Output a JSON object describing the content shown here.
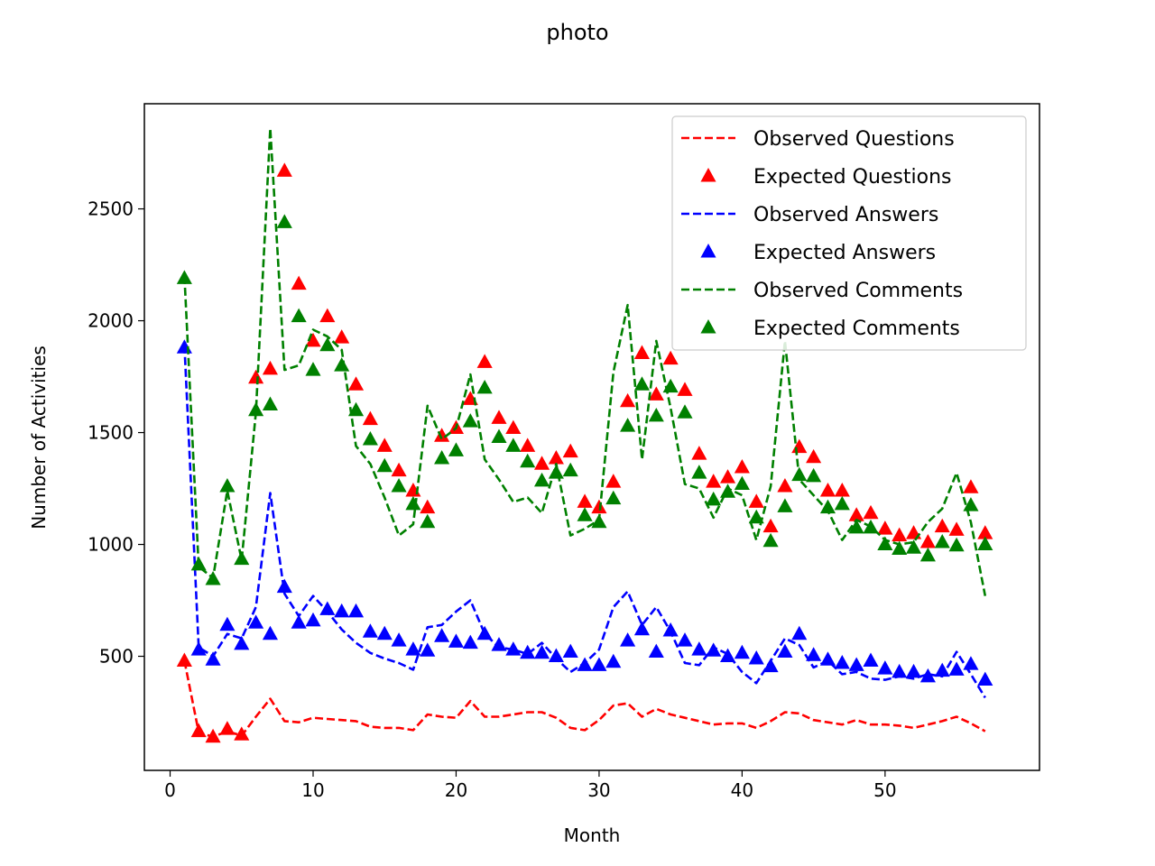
{
  "chart_data": {
    "type": "line",
    "title": "photo",
    "xlabel": "Month",
    "ylabel": "Number of Activities",
    "xlim": [
      -1.8,
      60.8
    ],
    "ylim": [
      -10,
      2970
    ],
    "xticks": [
      0,
      10,
      20,
      30,
      40,
      50
    ],
    "yticks": [
      500,
      1000,
      1500,
      2000,
      2500
    ],
    "grid": false,
    "legend_position": "top-right",
    "x": [
      1,
      2,
      3,
      4,
      5,
      6,
      7,
      8,
      9,
      10,
      11,
      12,
      13,
      14,
      15,
      16,
      17,
      18,
      19,
      20,
      21,
      22,
      23,
      24,
      25,
      26,
      27,
      28,
      29,
      30,
      31,
      32,
      33,
      34,
      35,
      36,
      37,
      38,
      39,
      40,
      41,
      42,
      43,
      44,
      45,
      46,
      47,
      48,
      49,
      50,
      51,
      52,
      53,
      54,
      55,
      56,
      57
    ],
    "series": [
      {
        "name": "Observed Questions",
        "style": "dashed",
        "color": "#ff0000",
        "values": [
          480,
          160,
          140,
          165,
          145,
          230,
          310,
          210,
          205,
          225,
          220,
          215,
          210,
          185,
          180,
          180,
          170,
          240,
          230,
          225,
          300,
          230,
          230,
          240,
          250,
          250,
          225,
          180,
          170,
          215,
          280,
          290,
          230,
          265,
          240,
          225,
          210,
          195,
          200,
          200,
          180,
          210,
          250,
          245,
          215,
          205,
          195,
          215,
          195,
          195,
          190,
          180,
          195,
          210,
          230,
          200,
          165
        ]
      },
      {
        "name": "Expected Questions",
        "style": "triangle",
        "color": "#ff0000",
        "values": [
          480,
          165,
          140,
          175,
          150,
          1745,
          1785,
          2670,
          2165,
          1910,
          2020,
          1925,
          1715,
          1560,
          1440,
          1330,
          1240,
          1165,
          1485,
          1520,
          1650,
          1815,
          1565,
          1520,
          1440,
          1360,
          1385,
          1415,
          1190,
          1165,
          1280,
          1640,
          1855,
          1670,
          1830,
          1690,
          1405,
          1280,
          1300,
          1345,
          1190,
          1080,
          1260,
          1435,
          1390,
          1240,
          1240,
          1130,
          1140,
          1070,
          1040,
          1050,
          1010,
          1080,
          1065,
          1255,
          1050
        ]
      },
      {
        "name": "Observed Answers",
        "style": "dashed",
        "color": "#0000ff",
        "values": [
          1890,
          540,
          500,
          600,
          580,
          720,
          1230,
          780,
          680,
          770,
          700,
          620,
          560,
          515,
          490,
          470,
          440,
          630,
          640,
          700,
          750,
          600,
          540,
          530,
          510,
          560,
          490,
          430,
          470,
          530,
          720,
          790,
          640,
          720,
          610,
          470,
          460,
          540,
          510,
          430,
          380,
          480,
          580,
          550,
          450,
          480,
          420,
          430,
          400,
          395,
          410,
          400,
          420,
          410,
          520,
          420,
          315
        ]
      },
      {
        "name": "Expected Answers",
        "style": "triangle",
        "color": "#0000ff",
        "values": [
          1880,
          530,
          485,
          640,
          555,
          650,
          600,
          810,
          650,
          660,
          710,
          700,
          700,
          610,
          600,
          570,
          530,
          525,
          590,
          565,
          560,
          600,
          550,
          530,
          515,
          515,
          500,
          520,
          460,
          460,
          475,
          570,
          620,
          520,
          615,
          570,
          530,
          525,
          500,
          515,
          490,
          455,
          520,
          600,
          505,
          485,
          470,
          460,
          480,
          445,
          430,
          430,
          410,
          435,
          440,
          465,
          395
        ]
      },
      {
        "name": "Observed Comments",
        "style": "dashed",
        "color": "#008000",
        "values": [
          2200,
          900,
          850,
          1240,
          930,
          1590,
          2860,
          1780,
          1800,
          1960,
          1930,
          1870,
          1440,
          1360,
          1210,
          1040,
          1090,
          1620,
          1470,
          1520,
          1760,
          1380,
          1290,
          1190,
          1210,
          1140,
          1360,
          1040,
          1070,
          1110,
          1770,
          2070,
          1380,
          1910,
          1610,
          1270,
          1250,
          1120,
          1250,
          1220,
          1020,
          1260,
          1910,
          1290,
          1220,
          1150,
          1020,
          1110,
          1080,
          1020,
          1000,
          1010,
          1100,
          1160,
          1320,
          1100,
          770
        ]
      },
      {
        "name": "Expected Comments",
        "style": "triangle",
        "color": "#008000",
        "values": [
          2190,
          910,
          845,
          1260,
          935,
          1600,
          1625,
          2440,
          2020,
          1780,
          1890,
          1800,
          1600,
          1470,
          1350,
          1260,
          1180,
          1100,
          1385,
          1420,
          1550,
          1700,
          1480,
          1440,
          1370,
          1285,
          1320,
          1330,
          1130,
          1100,
          1205,
          1530,
          1715,
          1575,
          1705,
          1590,
          1320,
          1200,
          1235,
          1270,
          1120,
          1015,
          1170,
          1310,
          1305,
          1165,
          1180,
          1075,
          1075,
          1000,
          980,
          985,
          950,
          1010,
          995,
          1175,
          1000
        ]
      }
    ]
  }
}
